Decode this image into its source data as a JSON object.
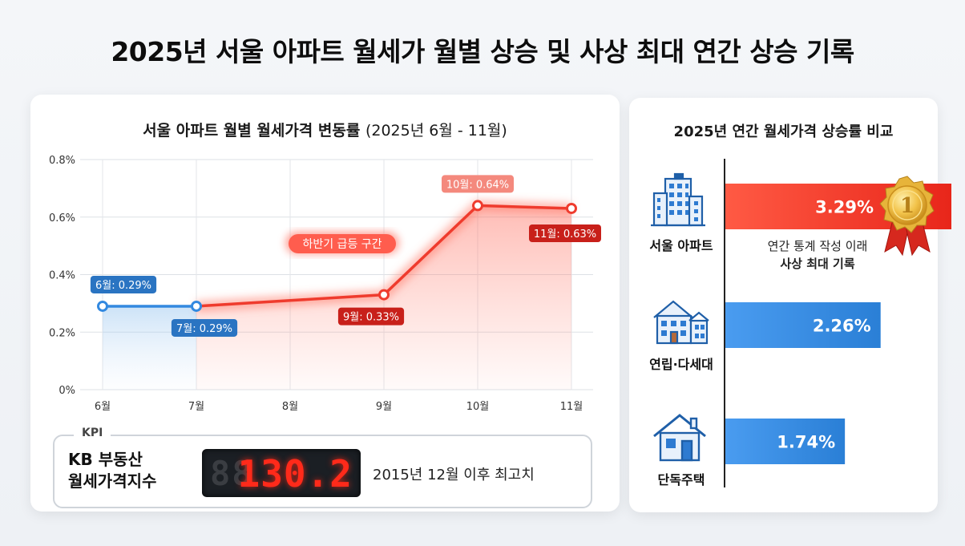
{
  "title": "2025년 서울 아파트 월세가 월별 상승 및 사상 최대 연간 상승 기록",
  "line_chart": {
    "title_main": "서울 아파트 월별 월세가격 변동률",
    "title_range": "(2025년 6월 - 11월)",
    "annotation": "하반기 급등 구간",
    "point_labels": [
      "6월: 0.29%",
      "7월: 0.29%",
      "9월: 0.33%",
      "10월: 0.64%",
      "11월: 0.63%"
    ]
  },
  "kpi": {
    "tag": "KPI",
    "name_line1": "KB 부동산",
    "name_line2": "월세가격지수",
    "value": "130.2",
    "ghost": "88",
    "note": "2015년 12월 이후 최고치"
  },
  "bar_chart": {
    "title": "2025년 연간 월세가격 상승률 비교",
    "note_line1": "연간 통계 작성 이래",
    "note_line2": "사상 최대 기록",
    "medal_text": "1"
  },
  "colors": {
    "red": "#ef3b2d",
    "blue": "#3389e0",
    "label_red": "#c8201a",
    "label_blue": "#2a74c2",
    "gold": "#e7b43a"
  },
  "icons": [
    "apartment-building-icon",
    "townhouse-icon",
    "house-icon",
    "gold-medal-icon"
  ],
  "chart_data": [
    {
      "type": "line",
      "title": "서울 아파트 월별 월세가격 변동률 (2025년 6월 - 11월)",
      "categories": [
        "6월",
        "7월",
        "8월",
        "9월",
        "10월",
        "11월"
      ],
      "series": [
        {
          "values": [
            0.29,
            0.29,
            0.31,
            0.33,
            0.64,
            0.63
          ]
        }
      ],
      "unit": "%",
      "ylim": [
        0,
        0.8
      ],
      "yticks": [
        "0%",
        "0.2%",
        "0.4%",
        "0.6%",
        "0.8%"
      ],
      "grid": true
    },
    {
      "type": "bar",
      "orientation": "horizontal",
      "title": "2025년 연간 월세가격 상승률 비교",
      "categories": [
        "서울 아파트",
        "연립·다세대",
        "단독주택"
      ],
      "values": [
        3.29,
        2.26,
        1.74
      ],
      "value_labels": [
        "3.29%",
        "2.26%",
        "1.74%"
      ],
      "unit": "%"
    }
  ]
}
